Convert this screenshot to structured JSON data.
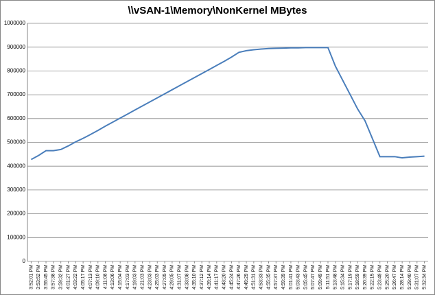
{
  "chart_data": {
    "type": "line",
    "title": "\\\\vSAN-1\\Memory\\NonKernel MBytes",
    "categories": [
      "3:52:01 PM",
      "3:53:52 PM",
      "3:55:45 PM",
      "3:57:38 PM",
      "3:59:32 PM",
      "4:01:27 PM",
      "4:03:22 PM",
      "4:05:17 PM",
      "4:07:13 PM",
      "4:09:10 PM",
      "4:11:08 PM",
      "4:13:06 PM",
      "4:15:04 PM",
      "4:17:03 PM",
      "4:19:03 PM",
      "4:21:03 PM",
      "4:23:03 PM",
      "4:25:03 PM",
      "4:27:05 PM",
      "4:29:05 PM",
      "4:31:07 PM",
      "4:33:08 PM",
      "4:35:10 PM",
      "4:37:12 PM",
      "4:39:14 PM",
      "4:41:17 PM",
      "4:43:20 PM",
      "4:45:24 PM",
      "4:47:26 PM",
      "4:49:29 PM",
      "4:51:31 PM",
      "4:53:33 PM",
      "4:55:35 PM",
      "4:57:37 PM",
      "4:59:39 PM",
      "5:01:41 PM",
      "5:03:43 PM",
      "5:05:45 PM",
      "5:07:47 PM",
      "5:09:49 PM",
      "5:11:51 PM",
      "5:13:48 PM",
      "5:15:34 PM",
      "5:17:19 PM",
      "5:18:59 PM",
      "5:20:39 PM",
      "5:22:15 PM",
      "5:23:49 PM",
      "5:25:20 PM",
      "5:26:47 PM",
      "5:28:14 PM",
      "5:29:40 PM",
      "5:31:07 PM",
      "5:32:34 PM"
    ],
    "values": [
      428000,
      445000,
      465000,
      465000,
      470000,
      485000,
      502000,
      517000,
      533000,
      550000,
      568000,
      585000,
      602000,
      619000,
      636000,
      653000,
      670000,
      687000,
      704000,
      721000,
      738000,
      755000,
      772000,
      789000,
      806000,
      823000,
      840000,
      858000,
      878000,
      885000,
      889000,
      892000,
      894000,
      895000,
      896000,
      897000,
      897000,
      898000,
      898000,
      898000,
      898000,
      820000,
      760000,
      700000,
      640000,
      590000,
      515000,
      440000,
      440000,
      440000,
      435000,
      438000,
      440000,
      442000
    ],
    "color": "#4a7ebb",
    "ylim": [
      0,
      1000000
    ],
    "yticks": [
      0,
      100000,
      200000,
      300000,
      400000,
      500000,
      600000,
      700000,
      800000,
      900000,
      1000000
    ],
    "grid": true
  }
}
